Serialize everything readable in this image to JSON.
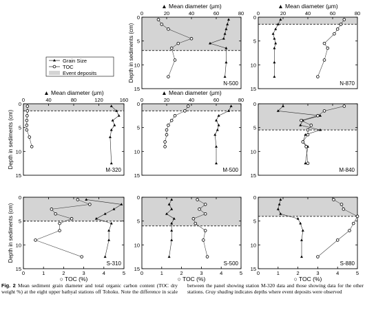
{
  "figure": {
    "caption_label": "Fig. 2",
    "caption_p1": " Mean sediment grain diameter and total organic carbon content (TOC dry weight %) at the eight upper bathyal stations off Tohoku. Note the difference in scale between the panel showing station M-320 data and those showing data for the other stations. ",
    "caption_italic": "Gray shading",
    "caption_p2": " indicates depths where event deposits were observed"
  },
  "legend": {
    "grain_label": "Grain Size",
    "toc_label": "TOC",
    "event_label": "Event deposits"
  },
  "axis_text": {
    "top_axis_label": "▲ Mean diameter (μm)",
    "bottom_axis_label": "○ TOC (%)",
    "depth_label": "Depth in sediments (cm)"
  },
  "colors": {
    "event_shading": "#d4d4d4",
    "boundary_dashes": "#555555"
  },
  "chart_data": [
    {
      "type": "line",
      "station": "N-500",
      "grain_ticks": [
        0,
        20,
        40,
        60,
        80
      ],
      "grain_range": [
        0,
        80
      ],
      "toc_ticks": [],
      "toc_range": [
        0,
        3
      ],
      "depth_ticks": [
        0,
        5,
        10,
        15
      ],
      "depth_range": [
        0,
        15
      ],
      "event_depth": [
        0,
        7
      ],
      "grain_series": [
        {
          "x": 70,
          "y": 0.5
        },
        {
          "x": 69,
          "y": 1.5
        },
        {
          "x": 68,
          "y": 2.5
        },
        {
          "x": 67,
          "y": 3.5
        },
        {
          "x": 66,
          "y": 4.5
        },
        {
          "x": 55,
          "y": 5.5
        },
        {
          "x": 68,
          "y": 6.5
        },
        {
          "x": 68,
          "y": 9.5
        },
        {
          "x": 67,
          "y": 12.5
        }
      ],
      "toc_series": [
        {
          "x": 0.5,
          "y": 0.5
        },
        {
          "x": 0.6,
          "y": 1.5
        },
        {
          "x": 0.8,
          "y": 2.5
        },
        {
          "x": 1.5,
          "y": 4.5
        },
        {
          "x": 1.1,
          "y": 5.5
        },
        {
          "x": 0.9,
          "y": 6.5
        },
        {
          "x": 1.0,
          "y": 9.0
        },
        {
          "x": 0.8,
          "y": 12.5
        }
      ]
    },
    {
      "type": "line",
      "station": "N-870",
      "grain_ticks": [
        0,
        20,
        40,
        60,
        80
      ],
      "grain_range": [
        0,
        80
      ],
      "toc_ticks": [],
      "toc_range": [
        0,
        3
      ],
      "depth_ticks": [
        0,
        5,
        10,
        15
      ],
      "depth_range": [
        0,
        15
      ],
      "event_depth": [
        0,
        1.5
      ],
      "grain_series": [
        {
          "x": 18,
          "y": 0.5
        },
        {
          "x": 16,
          "y": 1.5
        },
        {
          "x": 14,
          "y": 2.5
        },
        {
          "x": 12,
          "y": 3.5
        },
        {
          "x": 13,
          "y": 4.5
        },
        {
          "x": 14,
          "y": 5.5
        },
        {
          "x": 13,
          "y": 6.5
        },
        {
          "x": 13,
          "y": 9.5
        },
        {
          "x": 13,
          "y": 12.5
        }
      ],
      "toc_series": [
        {
          "x": 2.6,
          "y": 0.5
        },
        {
          "x": 2.5,
          "y": 1.5
        },
        {
          "x": 2.4,
          "y": 2.5
        },
        {
          "x": 2.3,
          "y": 3.5
        },
        {
          "x": 2.0,
          "y": 5.5
        },
        {
          "x": 2.1,
          "y": 6.5
        },
        {
          "x": 2.0,
          "y": 9.0
        },
        {
          "x": 1.8,
          "y": 12.5
        }
      ]
    },
    {
      "type": "line",
      "station": "M-320",
      "grain_ticks": [
        0,
        40,
        80,
        120,
        160
      ],
      "grain_range": [
        0,
        160
      ],
      "toc_ticks": [],
      "toc_range": [
        0,
        3
      ],
      "depth_ticks": [
        0,
        5,
        10,
        15
      ],
      "depth_range": [
        0,
        15
      ],
      "event_depth": [
        0,
        1.5
      ],
      "grain_series": [
        {
          "x": 140,
          "y": 0.5
        },
        {
          "x": 148,
          "y": 1.5
        },
        {
          "x": 152,
          "y": 2.5
        },
        {
          "x": 142,
          "y": 3.5
        },
        {
          "x": 145,
          "y": 4.5
        },
        {
          "x": 140,
          "y": 5.5
        },
        {
          "x": 138,
          "y": 7.0
        },
        {
          "x": 140,
          "y": 12.5
        }
      ],
      "toc_series": [
        {
          "x": 0.12,
          "y": 0.5
        },
        {
          "x": 0.12,
          "y": 1.5
        },
        {
          "x": 0.11,
          "y": 2.5
        },
        {
          "x": 0.1,
          "y": 3.5
        },
        {
          "x": 0.1,
          "y": 4.5
        },
        {
          "x": 0.1,
          "y": 5.5
        },
        {
          "x": 0.18,
          "y": 7.0
        },
        {
          "x": 0.25,
          "y": 9.0
        }
      ]
    },
    {
      "type": "line",
      "station": "M-500",
      "grain_ticks": [
        0,
        20,
        40,
        60,
        80
      ],
      "grain_range": [
        0,
        80
      ],
      "toc_ticks": [],
      "toc_range": [
        0,
        3
      ],
      "depth_ticks": [
        0,
        5,
        10,
        15
      ],
      "depth_range": [
        0,
        15
      ],
      "event_depth": [
        0,
        1.5
      ],
      "grain_series": [
        {
          "x": 72,
          "y": 0.5
        },
        {
          "x": 70,
          "y": 1.5
        },
        {
          "x": 62,
          "y": 2.5
        },
        {
          "x": 60,
          "y": 3.5
        },
        {
          "x": 62,
          "y": 4.5
        },
        {
          "x": 61,
          "y": 5.5
        },
        {
          "x": 59,
          "y": 6.5
        },
        {
          "x": 60,
          "y": 9.0
        },
        {
          "x": 60,
          "y": 12.5
        }
      ],
      "toc_series": [
        {
          "x": 1.4,
          "y": 0.5
        },
        {
          "x": 1.3,
          "y": 1.5
        },
        {
          "x": 1.0,
          "y": 2.5
        },
        {
          "x": 0.9,
          "y": 3.5
        },
        {
          "x": 0.8,
          "y": 4.5
        },
        {
          "x": 0.75,
          "y": 5.5
        },
        {
          "x": 0.75,
          "y": 6.5
        },
        {
          "x": 0.7,
          "y": 8.0
        },
        {
          "x": 0.7,
          "y": 9.0
        }
      ]
    },
    {
      "type": "line",
      "station": "M-840",
      "grain_ticks": [
        0,
        20,
        40,
        60,
        80
      ],
      "grain_range": [
        0,
        80
      ],
      "toc_ticks": [],
      "toc_range": [
        0,
        3
      ],
      "depth_ticks": [
        0,
        5,
        10,
        15
      ],
      "depth_range": [
        0,
        15
      ],
      "event_depth": [
        0,
        5.5
      ],
      "grain_series": [
        {
          "x": 20,
          "y": 0.5
        },
        {
          "x": 16,
          "y": 1.5
        },
        {
          "x": 50,
          "y": 2.5
        },
        {
          "x": 36,
          "y": 3.5
        },
        {
          "x": 34,
          "y": 4.5
        },
        {
          "x": 50,
          "y": 5.5
        },
        {
          "x": 38,
          "y": 6.5
        },
        {
          "x": 36,
          "y": 8.0
        },
        {
          "x": 40,
          "y": 9.0
        },
        {
          "x": 38,
          "y": 12.5
        }
      ],
      "toc_series": [
        {
          "x": 2.6,
          "y": 0.5
        },
        {
          "x": 2.0,
          "y": 1.5
        },
        {
          "x": 1.8,
          "y": 2.5
        },
        {
          "x": 1.3,
          "y": 3.5
        },
        {
          "x": 1.6,
          "y": 4.5
        },
        {
          "x": 1.5,
          "y": 5.5
        },
        {
          "x": 1.5,
          "y": 6.5
        },
        {
          "x": 1.35,
          "y": 8.0
        },
        {
          "x": 1.45,
          "y": 9.0
        },
        {
          "x": 1.5,
          "y": 12.5
        }
      ]
    },
    {
      "type": "line",
      "station": "S-310",
      "grain_ticks": [
        0,
        20,
        40,
        60,
        80
      ],
      "grain_range": [
        0,
        80
      ],
      "toc_ticks": [
        0,
        1,
        2,
        3,
        4,
        5
      ],
      "toc_range": [
        0,
        5
      ],
      "depth_ticks": [
        0,
        5,
        10,
        15
      ],
      "depth_range": [
        0,
        15
      ],
      "event_depth": [
        0,
        5
      ],
      "grain_series": [
        {
          "x": 50,
          "y": 0.5
        },
        {
          "x": 78,
          "y": 1.5
        },
        {
          "x": 72,
          "y": 2.5
        },
        {
          "x": 65,
          "y": 3.5
        },
        {
          "x": 58,
          "y": 4.5
        },
        {
          "x": 70,
          "y": 5.5
        },
        {
          "x": 68,
          "y": 7.0
        },
        {
          "x": 68,
          "y": 9.0
        },
        {
          "x": 65,
          "y": 12.5
        }
      ],
      "toc_series": [
        {
          "x": 2.7,
          "y": 0.5
        },
        {
          "x": 3.3,
          "y": 1.5
        },
        {
          "x": 1.4,
          "y": 2.5
        },
        {
          "x": 1.6,
          "y": 3.5
        },
        {
          "x": 2.4,
          "y": 4.5
        },
        {
          "x": 1.8,
          "y": 5.5
        },
        {
          "x": 1.8,
          "y": 7.0
        },
        {
          "x": 0.6,
          "y": 9.0
        },
        {
          "x": 2.9,
          "y": 12.5
        }
      ]
    },
    {
      "type": "line",
      "station": "S-500",
      "grain_ticks": [
        0,
        20,
        40,
        60,
        80
      ],
      "grain_range": [
        0,
        80
      ],
      "toc_ticks": [
        0,
        1,
        2,
        3,
        4,
        5
      ],
      "toc_range": [
        0,
        5
      ],
      "depth_ticks": [
        0,
        5,
        10,
        15
      ],
      "depth_range": [
        0,
        15
      ],
      "event_depth": [
        0,
        6
      ],
      "grain_series": [
        {
          "x": 24,
          "y": 0.5
        },
        {
          "x": 22,
          "y": 1.5
        },
        {
          "x": 24,
          "y": 2.5
        },
        {
          "x": 20,
          "y": 3.5
        },
        {
          "x": 26,
          "y": 4.5
        },
        {
          "x": 24,
          "y": 5.5
        },
        {
          "x": 24,
          "y": 7.0
        },
        {
          "x": 24,
          "y": 9.0
        },
        {
          "x": 22,
          "y": 12.5
        }
      ],
      "toc_series": [
        {
          "x": 2.8,
          "y": 0.5
        },
        {
          "x": 3.2,
          "y": 1.5
        },
        {
          "x": 2.9,
          "y": 2.5
        },
        {
          "x": 3.2,
          "y": 3.5
        },
        {
          "x": 2.6,
          "y": 4.5
        },
        {
          "x": 2.7,
          "y": 5.5
        },
        {
          "x": 3.2,
          "y": 7.0
        },
        {
          "x": 3.1,
          "y": 9.0
        },
        {
          "x": 3.3,
          "y": 12.5
        }
      ]
    },
    {
      "type": "line",
      "station": "S-880",
      "grain_ticks": [
        0,
        20,
        40,
        60,
        80
      ],
      "grain_range": [
        0,
        80
      ],
      "toc_ticks": [
        0,
        1,
        2,
        3,
        4,
        5
      ],
      "toc_range": [
        0,
        5
      ],
      "depth_ticks": [
        0,
        5,
        10,
        15
      ],
      "depth_range": [
        0,
        15
      ],
      "event_depth": [
        0,
        4
      ],
      "grain_series": [
        {
          "x": 18,
          "y": 0.5
        },
        {
          "x": 17,
          "y": 1.5
        },
        {
          "x": 16,
          "y": 2.5
        },
        {
          "x": 18,
          "y": 3.5
        },
        {
          "x": 32,
          "y": 4.5
        },
        {
          "x": 34,
          "y": 5.5
        },
        {
          "x": 36,
          "y": 7.0
        },
        {
          "x": 35,
          "y": 9.0
        },
        {
          "x": 35,
          "y": 12.5
        }
      ],
      "toc_series": [
        {
          "x": 3.8,
          "y": 0.5
        },
        {
          "x": 4.2,
          "y": 1.5
        },
        {
          "x": 4.3,
          "y": 2.5
        },
        {
          "x": 5.0,
          "y": 4.0
        },
        {
          "x": 4.8,
          "y": 5.5
        },
        {
          "x": 4.6,
          "y": 7.0
        },
        {
          "x": 4.0,
          "y": 9.0
        },
        {
          "x": 3.0,
          "y": 12.5
        }
      ]
    }
  ]
}
